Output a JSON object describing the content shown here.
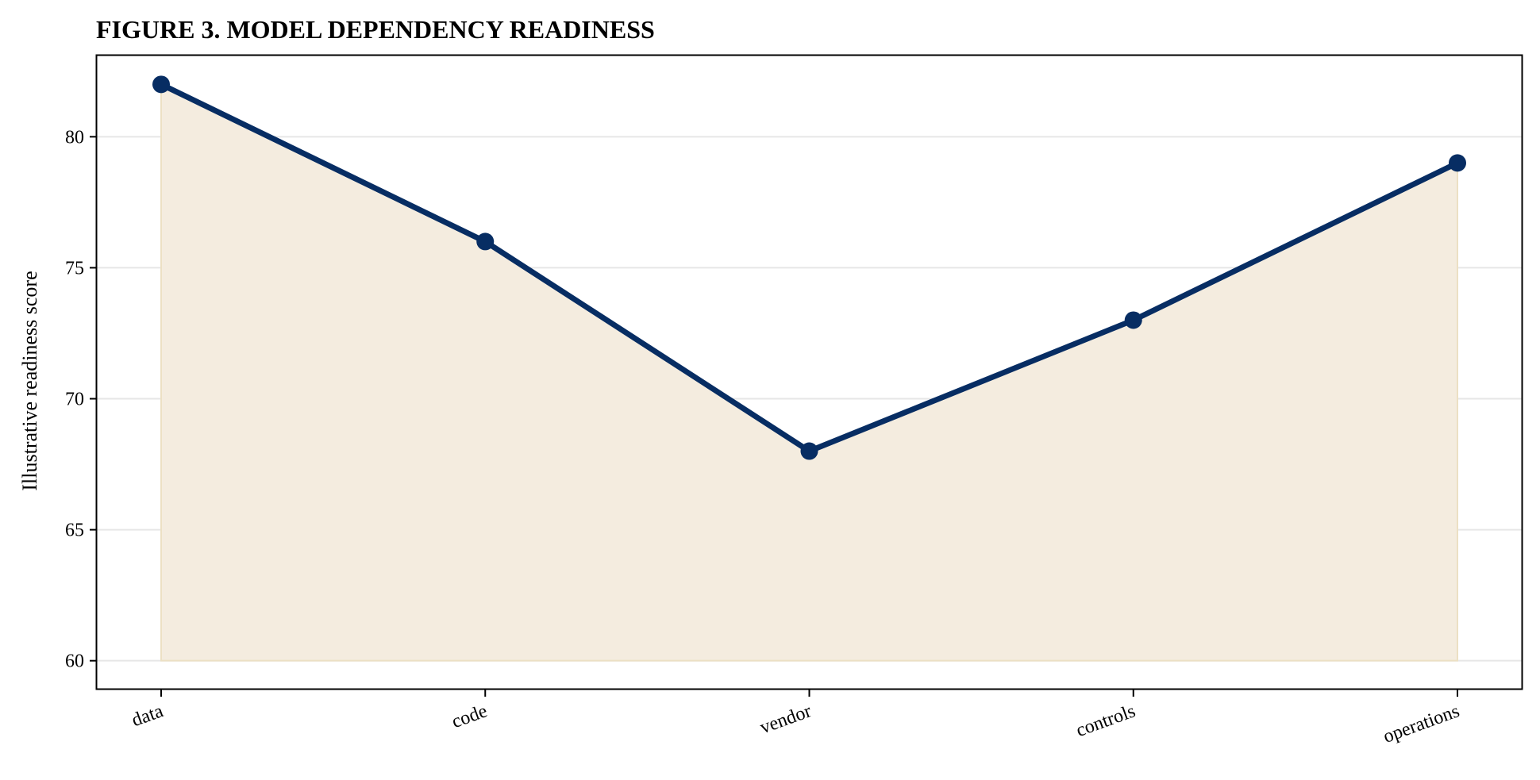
{
  "chart_data": {
    "type": "line",
    "title": "FIGURE 3. MODEL DEPENDENCY READINESS",
    "xlabel": "",
    "ylabel": "Illustrative readiness score",
    "categories": [
      "data",
      "code",
      "vendor",
      "controls",
      "operations"
    ],
    "series": [
      {
        "values": [
          82,
          76,
          68,
          73,
          79
        ]
      }
    ],
    "fill_baseline": 60,
    "ylim": [
      58.9,
      83.1
    ],
    "yticks": [
      60,
      65,
      70,
      75,
      80
    ],
    "ytick_labels": [
      "60",
      "65",
      "70",
      "75",
      "80"
    ],
    "grid": "horizontal",
    "legend": "none",
    "colors": {
      "line": "#072d63",
      "marker": "#072d63",
      "fill": "#f4ecdf",
      "fill_edge": "#ece0c4",
      "grid": "#e6e6e6",
      "axes": "#000000"
    }
  }
}
